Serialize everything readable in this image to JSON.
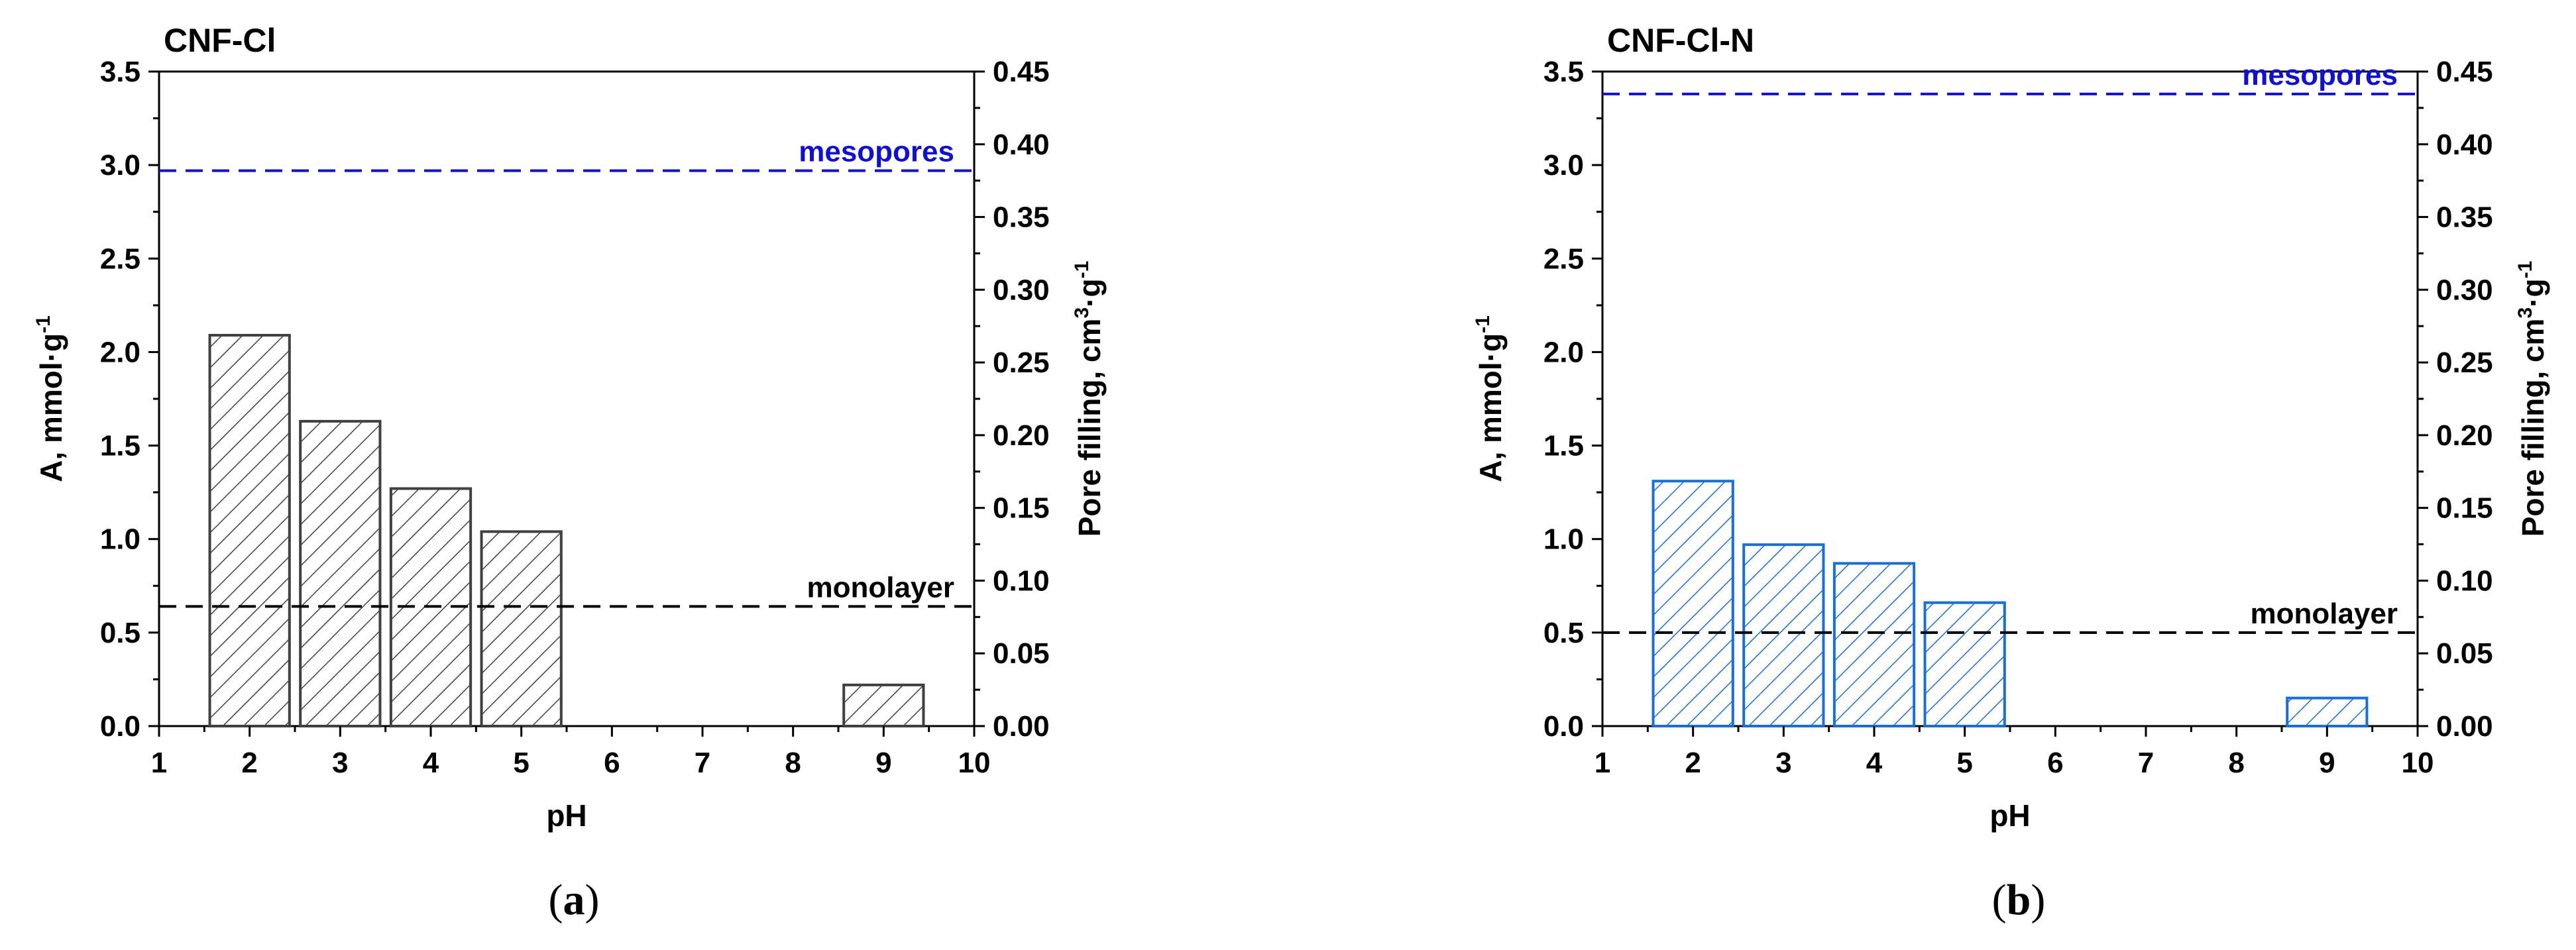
{
  "chart_data": [
    {
      "type": "bar",
      "title": "CNF-Cl",
      "sublabel": "a",
      "xlabel": "pH",
      "ylabel_main": "A, mmol·g",
      "ylabel_sup": "-1",
      "y2label_main": "Pore filling, cm",
      "y2label_sup1": "3",
      "y2label_mid": "·g",
      "y2label_sup2": "-1",
      "xlim": [
        1,
        10
      ],
      "ylim": [
        0,
        3.5
      ],
      "y2lim": [
        0,
        0.45
      ],
      "x_ticks": [
        "1",
        "2",
        "3",
        "4",
        "5",
        "6",
        "7",
        "8",
        "9",
        "10"
      ],
      "y_ticks": [
        "0.0",
        "0.5",
        "1.0",
        "1.5",
        "2.0",
        "2.5",
        "3.0",
        "3.5"
      ],
      "y2_ticks": [
        "0.00",
        "0.05",
        "0.10",
        "0.15",
        "0.20",
        "0.25",
        "0.30",
        "0.35",
        "0.40",
        "0.45"
      ],
      "x": [
        2,
        3,
        4,
        5,
        9
      ],
      "values": [
        2.09,
        1.63,
        1.27,
        1.04,
        0.22
      ],
      "bar_color": "#404040",
      "lines": [
        {
          "label": "mesopores",
          "y": 2.97,
          "color": "#1010d0",
          "dashed": true
        },
        {
          "label": "monolayer",
          "y": 0.64,
          "color": "#000000",
          "dashed": true
        }
      ]
    },
    {
      "type": "bar",
      "title": "CNF-Cl-N",
      "sublabel": "b",
      "xlabel": "pH",
      "ylabel_main": "A, mmol·g",
      "ylabel_sup": "-1",
      "y2label_main": "Pore filling, cm",
      "y2label_sup1": "3",
      "y2label_mid": "·g",
      "y2label_sup2": "-1",
      "xlim": [
        1,
        10
      ],
      "ylim": [
        0,
        3.5
      ],
      "y2lim": [
        0,
        0.45
      ],
      "x_ticks": [
        "1",
        "2",
        "3",
        "4",
        "5",
        "6",
        "7",
        "8",
        "9",
        "10"
      ],
      "y_ticks": [
        "0.0",
        "0.5",
        "1.0",
        "1.5",
        "2.0",
        "2.5",
        "3.0",
        "3.5"
      ],
      "y2_ticks": [
        "0.00",
        "0.05",
        "0.10",
        "0.15",
        "0.20",
        "0.25",
        "0.30",
        "0.35",
        "0.40",
        "0.45"
      ],
      "x": [
        2,
        3,
        4,
        5,
        9
      ],
      "values": [
        1.31,
        0.97,
        0.87,
        0.66,
        0.15
      ],
      "bar_color": "#1a6fd6",
      "lines": [
        {
          "label": "mesopores",
          "y": 3.38,
          "color": "#1010d0",
          "dashed": true
        },
        {
          "label": "monolayer",
          "y": 0.5,
          "color": "#000000",
          "dashed": true
        }
      ]
    }
  ]
}
